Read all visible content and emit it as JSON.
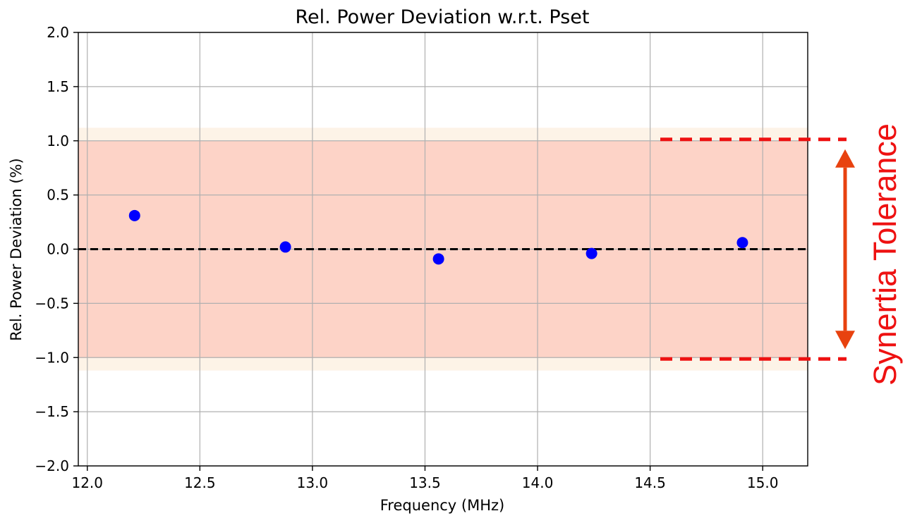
{
  "chart_data": {
    "type": "scatter",
    "title": "Rel. Power Deviation w.r.t. Pset",
    "xlabel": "Frequency (MHz)",
    "ylabel": "Rel. Power Deviation (%)",
    "xlim": [
      11.96,
      15.2
    ],
    "ylim": [
      -2.0,
      2.0
    ],
    "x_ticks": [
      12.0,
      12.5,
      13.0,
      13.5,
      14.0,
      14.5,
      15.0
    ],
    "x_tick_labels": [
      "12.0",
      "12.5",
      "13.0",
      "13.5",
      "14.0",
      "14.5",
      "15.0"
    ],
    "y_ticks": [
      -2.0,
      -1.5,
      -1.0,
      -0.5,
      0.0,
      0.5,
      1.0,
      1.5,
      2.0
    ],
    "y_tick_labels": [
      "−2.0",
      "−1.5",
      "−1.0",
      "−0.5",
      "0.0",
      "0.5",
      "1.0",
      "1.5",
      "2.0"
    ],
    "grid": true,
    "series": [
      {
        "x": [
          12.21,
          12.88,
          13.56,
          14.24,
          14.91
        ],
        "y": [
          0.31,
          0.02,
          -0.09,
          -0.04,
          0.06
        ],
        "color": "#0000ff"
      }
    ],
    "bands": [
      {
        "y_from": -1.12,
        "y_to": 1.12,
        "color": "#fdf3e7"
      },
      {
        "y_from": -1.0,
        "y_to": 1.0,
        "color": "#fdd3c7"
      }
    ],
    "reference_line": {
      "y": 0.0,
      "color": "#000000",
      "style": "dashed"
    },
    "annotation": {
      "text": "Synertia Tolerance",
      "upper": 1.0,
      "lower": -1.0,
      "color": "#ee1111",
      "arrow_color": "#e8420f"
    }
  }
}
